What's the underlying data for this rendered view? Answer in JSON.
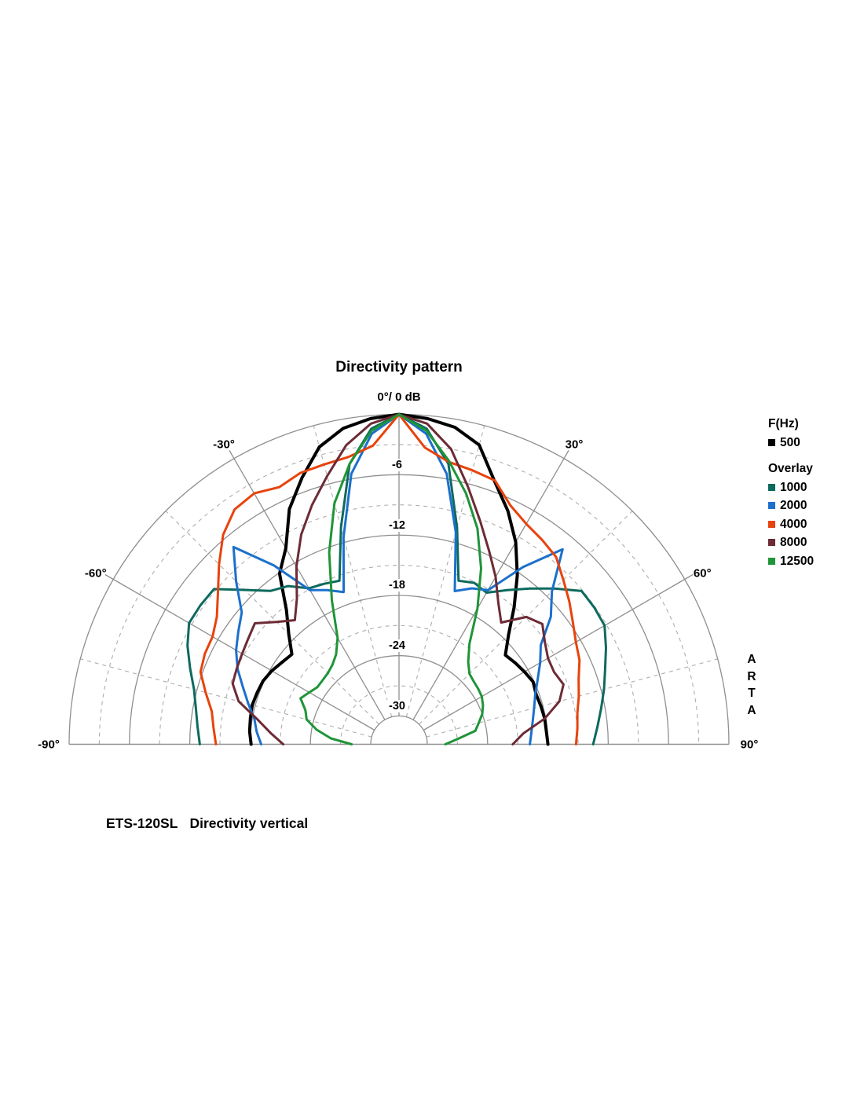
{
  "title": "Directivity pattern",
  "apex_label": "0°/ 0 dB",
  "watermark": "ARTA",
  "caption": {
    "model": "ETS-120SL",
    "text": "Directivity vertical"
  },
  "legend": {
    "primary_header": "F(Hz)",
    "overlay_header": "Overlay"
  },
  "chart_data": {
    "type": "line",
    "subtype": "polar-directivity-half",
    "title": "Directivity pattern",
    "angle_axis": {
      "unit": "deg",
      "labeled_ticks": [
        -90,
        -60,
        -30,
        30,
        60,
        90
      ],
      "labels": [
        "-90°",
        "-60°",
        "-30°",
        "30°",
        "60°",
        "90°"
      ],
      "solid_grid_step_deg": 30,
      "dashed_grid_step_deg": 15
    },
    "radial_axis": {
      "unit": "dB",
      "zero_label": "0°/ 0 dB",
      "labeled_ticks": [
        -6,
        -12,
        -18,
        -24,
        -30
      ],
      "tick_labels": [
        "-6",
        "-12",
        "-18",
        "-24",
        "-30"
      ],
      "solid_circle_dbs": [
        0,
        -6,
        -12,
        -18,
        -24,
        -30
      ],
      "dashed_circle_dbs": [
        -3,
        -9,
        -15,
        -21,
        -27
      ]
    },
    "grid_colors": {
      "solid": "#8f8f8f",
      "dashed": "#aeaeae"
    },
    "angles_deg": [
      -90,
      -85,
      -80,
      -75,
      -70,
      -65,
      -60,
      -55,
      -50,
      -45,
      -40,
      -35,
      -30,
      -25,
      -20,
      -15,
      -10,
      -5,
      0,
      5,
      10,
      15,
      20,
      25,
      30,
      35,
      40,
      45,
      50,
      55,
      60,
      65,
      70,
      75,
      80,
      85,
      90
    ],
    "series": [
      {
        "name": "500",
        "group": "F(Hz)",
        "color": "#000000",
        "width": 4,
        "values_db": [
          -18.1,
          -17.9,
          -17.8,
          -17.7,
          -17.8,
          -17.9,
          -18.2,
          -18.6,
          -18.9,
          -17.3,
          -15.4,
          -12.1,
          -10.3,
          -7.0,
          -4.6,
          -2.2,
          -0.9,
          -0.3,
          0,
          -0.3,
          -0.8,
          -2.0,
          -5.0,
          -7.2,
          -9.6,
          -12.3,
          -15.0,
          -17.4,
          -19.0,
          -18.7,
          -18.4,
          -18.1,
          -18.3,
          -18.2,
          -18.1,
          -18.1,
          -18.0
        ]
      },
      {
        "name": "1000",
        "group": "Overlay",
        "color": "#0d6a5e",
        "width": 3,
        "values_db": [
          -13.0,
          -12.7,
          -12.3,
          -11.7,
          -10.7,
          -9.6,
          -8.7,
          -8.7,
          -8.8,
          -11.1,
          -12.9,
          -13.6,
          -14.9,
          -15.2,
          -15.5,
          -10.5,
          -4.5,
          -1.3,
          0,
          -1.3,
          -4.5,
          -10.5,
          -15.5,
          -15.1,
          -15.4,
          -14.1,
          -12.6,
          -10.9,
          -9.1,
          -9.1,
          -9.2,
          -10.1,
          -11.0,
          -11.7,
          -12.4,
          -13.0,
          -13.5
        ]
      },
      {
        "name": "2000",
        "group": "Overlay",
        "color": "#1c70cc",
        "width": 3,
        "values_db": [
          -19.1,
          -18.6,
          -18.2,
          -17.3,
          -16.3,
          -15.1,
          -14.1,
          -13.3,
          -12.4,
          -9.9,
          -7.2,
          -11.1,
          -15.1,
          -15.9,
          -16.7,
          -11.5,
          -5.5,
          -1.8,
          0,
          -1.8,
          -5.5,
          -11.0,
          -16.6,
          -15.7,
          -15.1,
          -11.3,
          -7.5,
          -11.3,
          -13.1,
          -15.6,
          -16.6,
          -17.6,
          -18.4,
          -18.9,
          -19.3,
          -19.6,
          -19.8
        ]
      },
      {
        "name": "4000",
        "group": "Overlay",
        "color": "#e8430d",
        "width": 3,
        "values_db": [
          -14.6,
          -14.3,
          -13.9,
          -12.9,
          -11.8,
          -11.5,
          -11.4,
          -10.7,
          -9.3,
          -7.5,
          -5.6,
          -4.3,
          -4.0,
          -4.6,
          -4.1,
          -4.0,
          -3.8,
          -3.0,
          0,
          -3.2,
          -4.3,
          -4.6,
          -4.9,
          -6.6,
          -7.5,
          -8.0,
          -8.5,
          -9.7,
          -10.7,
          -11.7,
          -12.5,
          -13.0,
          -13.8,
          -14.3,
          -14.8,
          -15.0,
          -15.2
        ]
      },
      {
        "name": "8000",
        "group": "Overlay",
        "color": "#6c2b35",
        "width": 3,
        "values_db": [
          -21.3,
          -20.0,
          -18.5,
          -16.3,
          -15.2,
          -15.0,
          -14.8,
          -14.5,
          -14.1,
          -15.6,
          -16.7,
          -15.1,
          -12.4,
          -9.8,
          -7.5,
          -5.2,
          -2.6,
          -0.8,
          0,
          -0.8,
          -3.0,
          -6.3,
          -9.2,
          -11.6,
          -13.6,
          -15.6,
          -17.0,
          -14.9,
          -14.2,
          -15.1,
          -15.7,
          -15.8,
          -15.4,
          -16.3,
          -18.1,
          -20.4,
          -21.5
        ]
      },
      {
        "name": "12500",
        "group": "Overlay",
        "color": "#1f9438",
        "width": 3,
        "values_db": [
          -28.1,
          -26.0,
          -24.5,
          -23.3,
          -22.9,
          -22.0,
          -22.5,
          -22.9,
          -22.9,
          -22.8,
          -22.5,
          -21.9,
          -20.6,
          -17.0,
          -12.5,
          -8.0,
          -4.5,
          -1.5,
          0,
          -1.5,
          -4.2,
          -7.0,
          -10.0,
          -13.5,
          -17.2,
          -20.6,
          -22.1,
          -22.9,
          -23.1,
          -23.2,
          -23.3,
          -23.6,
          -24.0,
          -24.6,
          -25.1,
          -27.0,
          -28.2
        ]
      }
    ]
  }
}
